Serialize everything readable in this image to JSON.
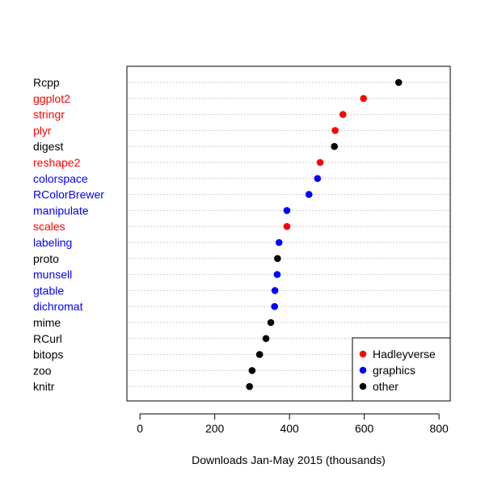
{
  "chart_data": {
    "type": "scatter",
    "title": "",
    "xlabel": "Downloads Jan-May 2015 (thousands)",
    "ylabel": "",
    "xlim": [
      -35,
      830
    ],
    "xticks": [
      0,
      200,
      400,
      600,
      800
    ],
    "grid": "horizontal dotted",
    "legend_position": "bottom-right",
    "groups": [
      {
        "name": "Hadleyverse",
        "color": "#ff0000"
      },
      {
        "name": "graphics",
        "color": "#0000ff"
      },
      {
        "name": "other",
        "color": "#000000"
      }
    ],
    "points": [
      {
        "label": "Rcpp",
        "value": 692,
        "group": "other"
      },
      {
        "label": "ggplot2",
        "value": 598,
        "group": "Hadleyverse"
      },
      {
        "label": "stringr",
        "value": 543,
        "group": "Hadleyverse"
      },
      {
        "label": "plyr",
        "value": 522,
        "group": "Hadleyverse"
      },
      {
        "label": "digest",
        "value": 520,
        "group": "other"
      },
      {
        "label": "reshape2",
        "value": 482,
        "group": "Hadleyverse"
      },
      {
        "label": "colorspace",
        "value": 475,
        "group": "graphics"
      },
      {
        "label": "RColorBrewer",
        "value": 452,
        "group": "graphics"
      },
      {
        "label": "manipulate",
        "value": 393,
        "group": "graphics"
      },
      {
        "label": "scales",
        "value": 393,
        "group": "Hadleyverse"
      },
      {
        "label": "labeling",
        "value": 372,
        "group": "graphics"
      },
      {
        "label": "proto",
        "value": 368,
        "group": "other"
      },
      {
        "label": "munsell",
        "value": 367,
        "group": "graphics"
      },
      {
        "label": "gtable",
        "value": 361,
        "group": "graphics"
      },
      {
        "label": "dichromat",
        "value": 360,
        "group": "graphics"
      },
      {
        "label": "mime",
        "value": 350,
        "group": "other"
      },
      {
        "label": "RCurl",
        "value": 337,
        "group": "other"
      },
      {
        "label": "bitops",
        "value": 320,
        "group": "other"
      },
      {
        "label": "zoo",
        "value": 300,
        "group": "other"
      },
      {
        "label": "knitr",
        "value": 293,
        "group": "other"
      }
    ]
  }
}
